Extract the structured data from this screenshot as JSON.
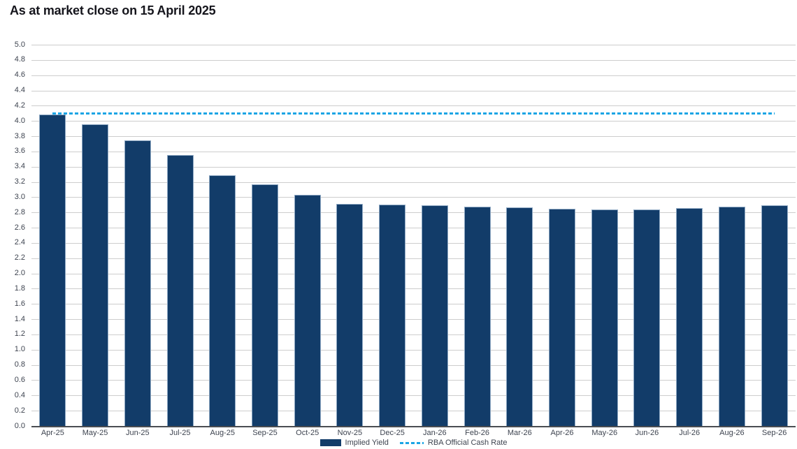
{
  "title": "As at market close on 15 April 2025",
  "colors": {
    "bar_fill": "#123C69",
    "bar_border": "#8FA9C4",
    "cash_rate_line": "#1BA5E5",
    "gridline": "#CDCDCD",
    "axis_line": "#4A4D52",
    "tick_label": "#3E4450",
    "title_text": "#15151C"
  },
  "legend": {
    "implied_yield_label": "Implied Yield",
    "cash_rate_label": "RBA Official Cash Rate"
  },
  "chart_data": {
    "type": "bar",
    "title": "As at market close on 15 April 2025",
    "categories": [
      "Apr-25",
      "May-25",
      "Jun-25",
      "Jul-25",
      "Aug-25",
      "Sep-25",
      "Oct-25",
      "Nov-25",
      "Dec-25",
      "Jan-26",
      "Feb-26",
      "Mar-26",
      "Apr-26",
      "May-26",
      "Jun-26",
      "Jul-26",
      "Aug-26",
      "Sep-26"
    ],
    "series": [
      {
        "name": "Implied Yield",
        "type": "bar",
        "values": [
          4.08,
          3.96,
          3.75,
          3.55,
          3.29,
          3.17,
          3.03,
          2.91,
          2.9,
          2.89,
          2.88,
          2.87,
          2.85,
          2.84,
          2.84,
          2.86,
          2.88,
          2.89
        ]
      },
      {
        "name": "RBA Official Cash Rate",
        "type": "line",
        "style": "dashed",
        "value": 4.1
      }
    ],
    "xlabel": "",
    "ylabel": "",
    "ylim": [
      0.0,
      5.0
    ],
    "ytick_step": 0.2,
    "ytick_format_decimals": 1,
    "grid": true,
    "legend_position": "bottom"
  }
}
